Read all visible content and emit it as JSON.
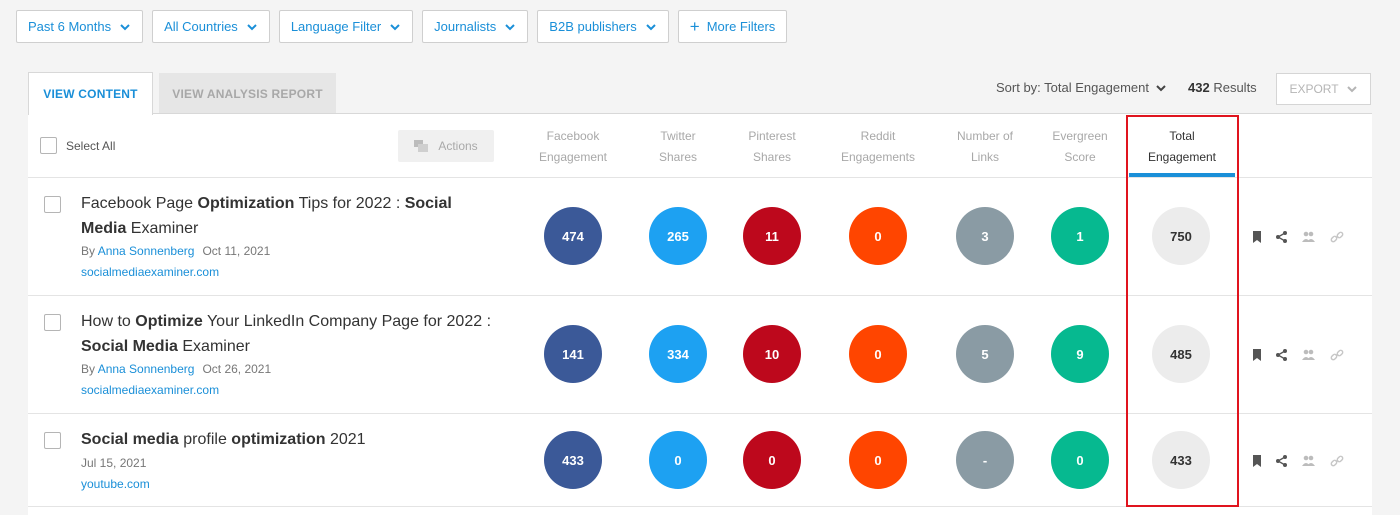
{
  "filters": [
    {
      "label": "Past 6 Months",
      "type": "dropdown"
    },
    {
      "label": "All Countries",
      "type": "dropdown"
    },
    {
      "label": "Language Filter",
      "type": "dropdown"
    },
    {
      "label": "Journalists",
      "type": "dropdown"
    },
    {
      "label": "B2B publishers",
      "type": "dropdown"
    },
    {
      "label": "More Filters",
      "type": "add"
    }
  ],
  "tabs": {
    "view_content": "VIEW CONTENT",
    "view_analysis": "VIEW ANALYSIS REPORT"
  },
  "sort": {
    "label": "Sort by: Total Engagement"
  },
  "results": {
    "count": "432",
    "label": "Results"
  },
  "export_label": "EXPORT",
  "header": {
    "select_all": "Select All",
    "actions": "Actions",
    "columns": [
      {
        "line1": "Facebook",
        "line2": "Engagement"
      },
      {
        "line1": "Twitter",
        "line2": "Shares"
      },
      {
        "line1": "Pinterest",
        "line2": "Shares"
      },
      {
        "line1": "Reddit",
        "line2": "Engagements"
      },
      {
        "line1": "Number of",
        "line2": "Links"
      },
      {
        "line1": "Evergreen",
        "line2": "Score"
      },
      {
        "line1": "Total",
        "line2": "Engagement"
      }
    ]
  },
  "rows": [
    {
      "title_parts": [
        "Facebook Page ",
        "Optimization",
        " Tips for 2022 : ",
        "Social Media",
        " Examiner"
      ],
      "author_prefix": "By ",
      "author": "Anna Sonnenberg",
      "date": "Oct 11, 2021",
      "domain": "socialmediaexaminer.com",
      "metrics": [
        "474",
        "265",
        "11",
        "0",
        "3",
        "1",
        "750"
      ]
    },
    {
      "title_parts": [
        "How to ",
        "Optimize",
        " Your LinkedIn Company Page for 2022 : ",
        "Social Media",
        " Examiner"
      ],
      "author_prefix": "By ",
      "author": "Anna Sonnenberg",
      "date": "Oct 26, 2021",
      "domain": "socialmediaexaminer.com",
      "metrics": [
        "141",
        "334",
        "10",
        "0",
        "5",
        "9",
        "485"
      ]
    },
    {
      "title_parts": [
        "Social media",
        " profile ",
        "optimization",
        " 2021"
      ],
      "date": "Jul 15, 2021",
      "domain": "youtube.com",
      "metrics": [
        "433",
        "0",
        "0",
        "0",
        "-",
        "0",
        "433"
      ]
    }
  ],
  "colors": {
    "accent": "#1a8fd8",
    "facebook": "#3b5998",
    "twitter": "#1da1f2",
    "pinterest": "#bd081c",
    "reddit": "#ff4500",
    "links": "#8a9ba4",
    "evergreen": "#06b990",
    "highlight_box": "#e0141e"
  },
  "row_icons": [
    "bookmark-icon",
    "share-icon",
    "users-icon",
    "link-icon"
  ]
}
